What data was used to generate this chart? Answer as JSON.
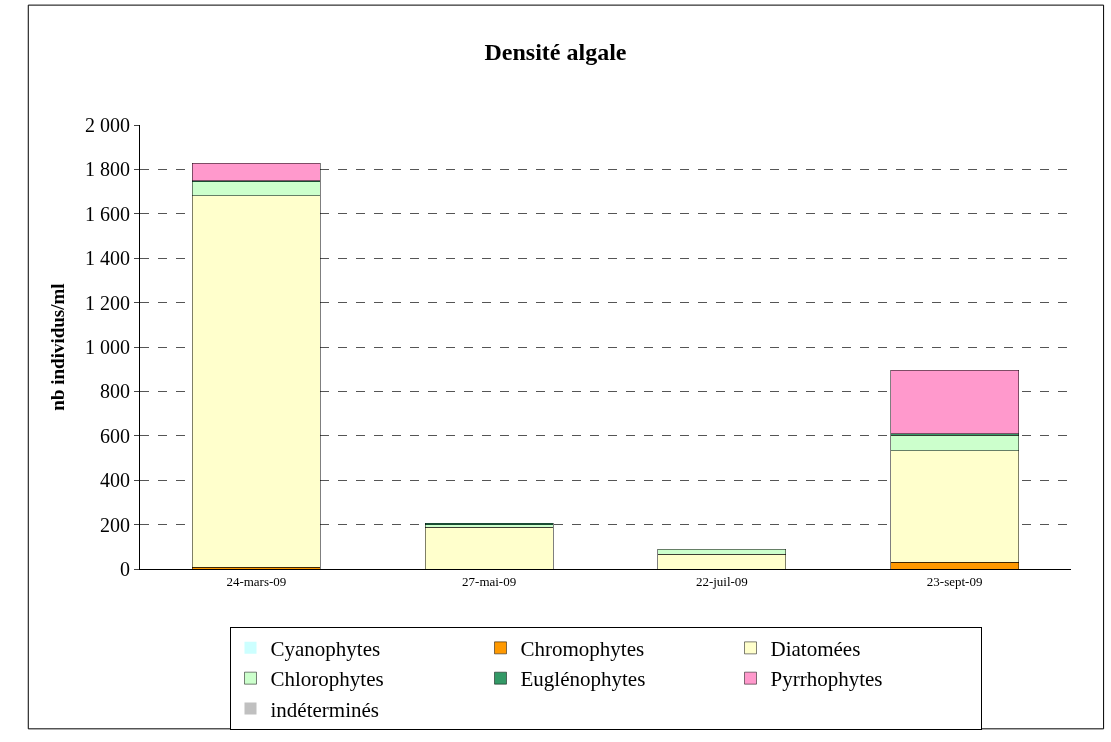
{
  "chart_data": {
    "type": "bar",
    "stacked": true,
    "title": "Densité algale",
    "ylabel": "nb individus/ml",
    "categories": [
      "24-mars-09",
      "27-mai-09",
      "22-juil-09",
      "23-sept-09"
    ],
    "series": [
      {
        "name": "Cyanophytes",
        "color": "#ccffff",
        "values": [
          0,
          0,
          0,
          0
        ]
      },
      {
        "name": "Chromophytes",
        "color": "#ff9900",
        "values": [
          7,
          0,
          0,
          30
        ]
      },
      {
        "name": "Diatomées",
        "color": "#ffffcc",
        "values": [
          1675,
          187,
          67,
          502
        ]
      },
      {
        "name": "Chlorophytes",
        "color": "#ccffcc",
        "values": [
          62,
          12,
          21,
          71
        ]
      },
      {
        "name": "Euglénophytes",
        "color": "#339966",
        "values": [
          5,
          8,
          0,
          7
        ]
      },
      {
        "name": "Pyrrhophytes",
        "color": "#ff99cc",
        "values": [
          78,
          0,
          0,
          286
        ]
      },
      {
        "name": "indéterminés",
        "color": "#c0c0c0",
        "values": [
          0,
          0,
          0,
          0
        ]
      }
    ],
    "ylim": [
      0,
      2000
    ],
    "yticks": [
      {
        "value": 0,
        "label": "0"
      },
      {
        "value": 200,
        "label": "200"
      },
      {
        "value": 400,
        "label": "400"
      },
      {
        "value": 600,
        "label": "600"
      },
      {
        "value": 800,
        "label": "800"
      },
      {
        "value": 1000,
        "label": "1 000"
      },
      {
        "value": 1200,
        "label": "1 200"
      },
      {
        "value": 1400,
        "label": "1 400"
      },
      {
        "value": 1600,
        "label": "1 600"
      },
      {
        "value": 1800,
        "label": "1 800"
      },
      {
        "value": 2000,
        "label": "2 000"
      }
    ],
    "grid": "y",
    "legend": "bottom"
  }
}
